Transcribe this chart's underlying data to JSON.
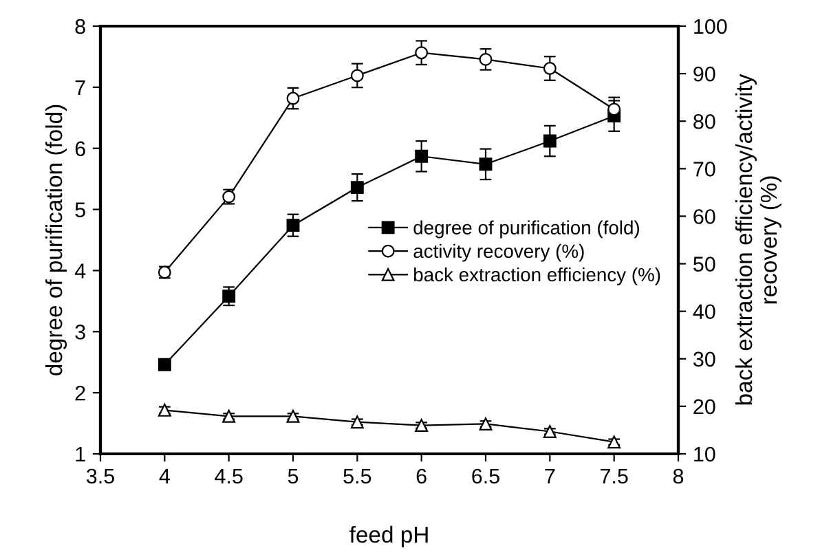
{
  "chart_data": {
    "type": "line",
    "xlabel": "feed pH",
    "ylabel": "degree of purification (fold)",
    "y2label": "back extraction efficiency/activity\nrecovery (%)",
    "x": [
      4,
      4.5,
      5,
      5.5,
      6,
      6.5,
      7,
      7.5
    ],
    "xlim": [
      3.5,
      8
    ],
    "xticks": [
      3.5,
      4,
      4.5,
      5,
      5.5,
      6,
      6.5,
      7,
      7.5,
      8
    ],
    "ylim": [
      1,
      8
    ],
    "yticks": [
      1,
      2,
      3,
      4,
      5,
      6,
      7,
      8
    ],
    "y2lim": [
      10,
      100
    ],
    "y2ticks": [
      10,
      20,
      30,
      40,
      50,
      60,
      70,
      80,
      90,
      100
    ],
    "grid": false,
    "legend": "center right",
    "series": [
      {
        "name": "degree of purification (fold)",
        "color": "#000000",
        "marker": "square",
        "axis": "y",
        "values": [
          2.46,
          3.58,
          4.74,
          5.36,
          5.87,
          5.74,
          6.12,
          6.53
        ],
        "errors": [
          0.08,
          0.15,
          0.18,
          0.22,
          0.25,
          0.25,
          0.25,
          0.25
        ]
      },
      {
        "name": "activity recovery (%)",
        "color": "#000000",
        "marker": "circle",
        "axis": "y2",
        "values": [
          48.2,
          64.1,
          84.8,
          89.6,
          94.4,
          93.0,
          91.1,
          82.5
        ],
        "errors": [
          1.2,
          1.5,
          2.2,
          2.5,
          2.5,
          2.2,
          2.5,
          2.5
        ]
      },
      {
        "name": "back extraction efficiency (%)",
        "color": "#000000",
        "marker": "triangle",
        "axis": "y2",
        "values": [
          19.2,
          17.9,
          17.9,
          16.7,
          16.0,
          16.3,
          14.7,
          12.5
        ],
        "errors": [
          0.7,
          0.6,
          0.6,
          0.6,
          0.6,
          0.6,
          0.6,
          0.6
        ]
      }
    ]
  }
}
